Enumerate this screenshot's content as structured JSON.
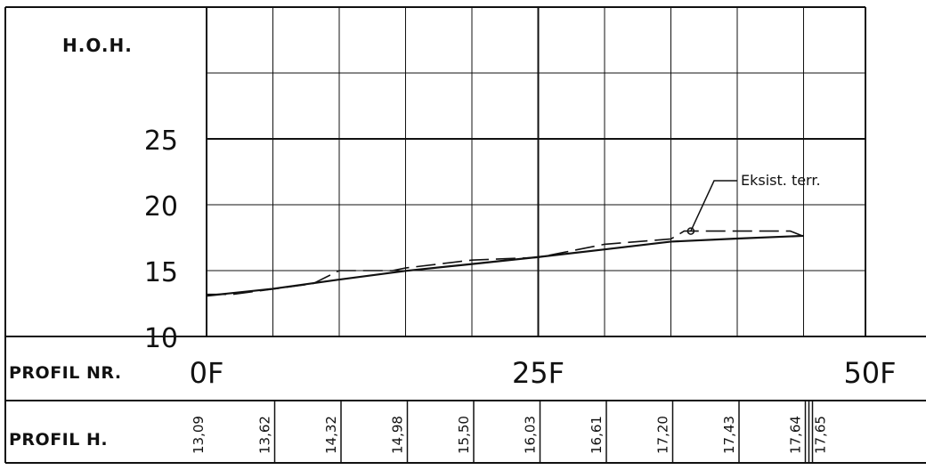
{
  "header": {
    "unit_label": "H.O.H."
  },
  "profile_row": {
    "label": "PROFIL NR."
  },
  "height_row": {
    "label": "PROFIL H."
  },
  "annotation": {
    "text": "Eksist. terr."
  },
  "chart_data": {
    "type": "line",
    "y_tick_labels": [
      "10",
      "15",
      "20",
      "25"
    ],
    "ylim": [
      10,
      25
    ],
    "xlim": [
      0,
      45
    ],
    "grid": true,
    "x_tick_labels": [
      {
        "x": 0,
        "label": "0F"
      },
      {
        "x": 25,
        "label": "25F"
      },
      {
        "x": 50,
        "label": "50F"
      }
    ],
    "series": [
      {
        "style": "solid",
        "x": [
          0,
          5,
          10,
          15,
          20,
          25,
          30,
          35,
          40,
          45
        ],
        "y": [
          13.09,
          13.62,
          14.32,
          14.98,
          15.5,
          16.03,
          16.61,
          17.2,
          17.43,
          17.64
        ]
      },
      {
        "style": "dashed",
        "x": [
          0,
          2,
          8,
          10,
          14,
          15,
          20,
          25,
          30,
          35,
          36,
          38,
          40,
          44,
          45
        ],
        "y": [
          13.2,
          13.2,
          14.0,
          15.0,
          15.0,
          15.2,
          15.8,
          16.0,
          17.0,
          17.4,
          18.0,
          18.0,
          18.0,
          18.0,
          17.6
        ]
      }
    ],
    "height_values": [
      {
        "x": 0,
        "label": "13,09"
      },
      {
        "x": 5,
        "label": "13,62"
      },
      {
        "x": 10,
        "label": "14,32"
      },
      {
        "x": 15,
        "label": "14,98"
      },
      {
        "x": 20,
        "label": "15,50"
      },
      {
        "x": 25,
        "label": "16,03"
      },
      {
        "x": 30,
        "label": "16,61"
      },
      {
        "x": 35,
        "label": "17,20"
      },
      {
        "x": 40,
        "label": "17,43"
      },
      {
        "x": 45,
        "label": "17,64"
      },
      {
        "x": 45,
        "label": "17,65"
      }
    ]
  }
}
